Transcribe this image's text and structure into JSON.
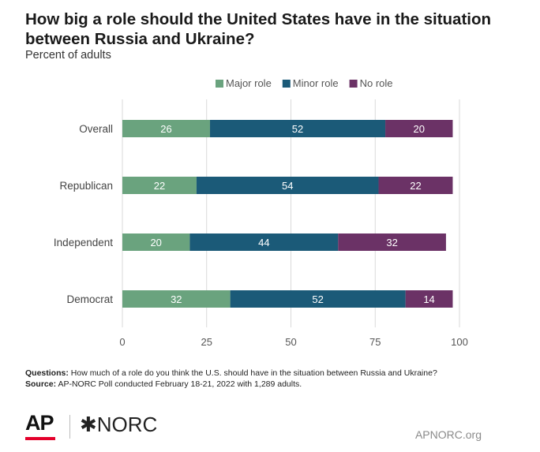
{
  "title": "How big a role should the United States have in the situation between Russia and Ukraine?",
  "subtitle": "Percent of adults",
  "notes": {
    "questions_label": "Questions:",
    "questions_text": "How much of a role do you think the U.S. should have in the situation between Russia and Ukraine?",
    "source_label": "Source:",
    "source_text": "AP-NORC Poll conducted February 18-21, 2022 with 1,289 adults."
  },
  "footer": {
    "ap_logo": "AP",
    "norc_logo": "✱NORC",
    "url": "APNORC.org"
  },
  "chart_data": {
    "type": "bar",
    "orientation": "horizontal",
    "stacked": true,
    "categories": [
      "Overall",
      "Republican",
      "Independent",
      "Democrat"
    ],
    "series": [
      {
        "name": "Major role",
        "values": [
          26,
          22,
          20,
          32
        ],
        "color": "#6aa37e"
      },
      {
        "name": "Minor role",
        "values": [
          52,
          54,
          44,
          52
        ],
        "color": "#1b5a78"
      },
      {
        "name": "No role",
        "values": [
          20,
          22,
          32,
          14
        ],
        "color": "#6b3266"
      }
    ],
    "xlim": [
      0,
      100
    ],
    "xticks": [
      0,
      25,
      50,
      75,
      100
    ],
    "grid": "vertical",
    "legend": "top-right",
    "xlabel": "",
    "ylabel": ""
  }
}
